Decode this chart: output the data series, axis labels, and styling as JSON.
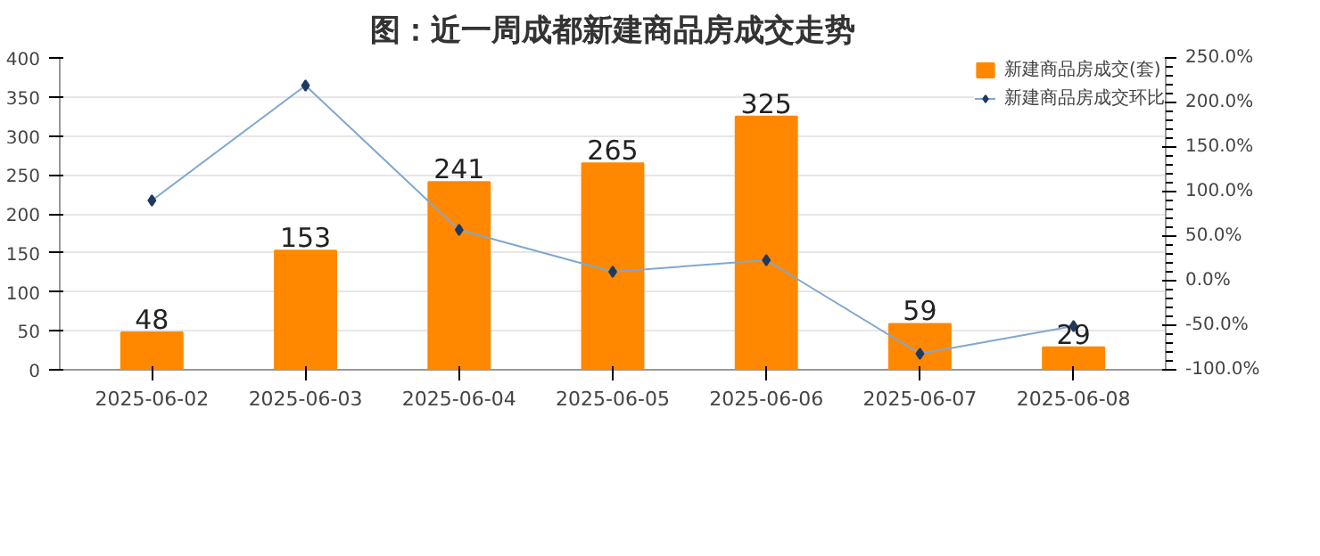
{
  "chart_data": {
    "type": "bar",
    "title": "图：近一周成都新建商品房成交走势",
    "categories": [
      "2025-06-02",
      "2025-06-03",
      "2025-06-04",
      "2025-06-05",
      "2025-06-06",
      "2025-06-07",
      "2025-06-08"
    ],
    "series": [
      {
        "name": "新建商品房成交(套)",
        "color": "#ff8800",
        "values": [
          48,
          153,
          241,
          265,
          325,
          59,
          29
        ],
        "data_labels": true
      },
      {
        "name": "新建商品房成交环比",
        "type": "line",
        "axis": "y2",
        "color": "#7fa8d0",
        "marker": "diamond",
        "values": [
          90,
          219,
          57,
          10,
          23,
          -82,
          -51
        ]
      }
    ],
    "ylim": [
      0,
      400
    ],
    "yticks": [
      0,
      50,
      100,
      150,
      200,
      250,
      300,
      350,
      400
    ],
    "y2lim": [
      -100,
      250
    ],
    "y2ticks": [
      {
        "value": -100,
        "label": "-100.0%"
      },
      {
        "value": -50,
        "label": "-50.0%"
      },
      {
        "value": 0,
        "label": "0.0%"
      },
      {
        "value": 50,
        "label": "50.0%"
      },
      {
        "value": 100,
        "label": "100.0%"
      },
      {
        "value": 150,
        "label": "150.0%"
      },
      {
        "value": 200,
        "label": "200.0%"
      },
      {
        "value": 250,
        "label": "250.0%"
      }
    ],
    "grid": "y",
    "legend": "top right"
  }
}
